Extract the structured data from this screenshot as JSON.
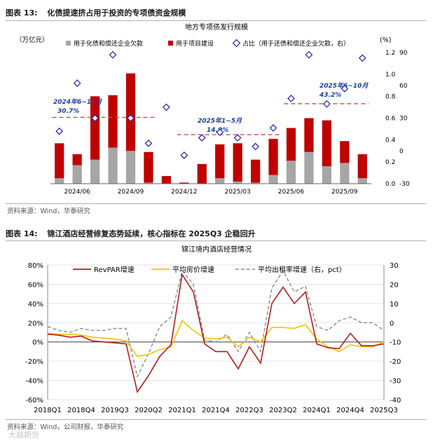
{
  "figure13": {
    "label": "图表 13:",
    "heading": "化债提速挤占用于投资的专项债资金规模",
    "source": "资料来源：Wind，华泰研究"
  },
  "figure14": {
    "label": "图表 14:",
    "heading": "锦江酒店经营修复态势延续，核心指标在 2025Q3 企稳回升",
    "source": "资料来源：Wind，公司财报，华泰研究",
    "watermark": "大越期货"
  },
  "colors": {
    "gray_bar": "#a6a6a6",
    "red_bar": "#c00000",
    "diamond": "#1f1fa8",
    "dash_red": "#c0504d",
    "line_red": "#b71c1c",
    "line_gold": "#f2c200",
    "line_gray": "#8c8c8c"
  },
  "chart_data": [
    {
      "type": "bar",
      "title": "地方专项债发行规模",
      "left_unit": "（万亿元）",
      "right_unit": "(%)",
      "legend": [
        "用于化债和偿还企业欠款",
        "用于项目建设",
        "占比（用于还债和偿还企业欠款，右）"
      ],
      "categories": [
        "2024/05",
        "2024/06",
        "2024/07",
        "2024/08",
        "2024/09",
        "2024/10",
        "2024/11",
        "2024/12",
        "2025/01",
        "2025/02",
        "2025/03",
        "2025/04",
        "2025/05",
        "2025/06",
        "2025/07",
        "2025/08",
        "2025/09",
        "2025/10"
      ],
      "x_tick_labels": [
        "2024/06",
        "2024/09",
        "2024/12",
        "2025/03",
        "2025/06",
        "2025/09"
      ],
      "series": [
        {
          "name": "用于化债和偿还企业欠款",
          "values": [
            0.05,
            0.17,
            0.22,
            0.33,
            0.3,
            0.01,
            0.0,
            0.0,
            0.0,
            0.05,
            0.02,
            0.01,
            0.08,
            0.21,
            0.29,
            0.16,
            0.19,
            0.05
          ]
        },
        {
          "name": "用于项目建设",
          "values": [
            0.32,
            0.1,
            0.58,
            0.48,
            0.71,
            0.28,
            0.07,
            0.01,
            0.18,
            0.31,
            0.35,
            0.21,
            0.33,
            0.3,
            0.31,
            0.42,
            0.2,
            0.22
          ]
        },
        {
          "name": "占比（用于还债和偿还企业欠款，右）",
          "values": [
            18,
            62,
            30,
            88,
            30,
            7,
            40,
            -4,
            12,
            17,
            12,
            4,
            21,
            48,
            88,
            43,
            57,
            85
          ]
        }
      ],
      "ylim_left": [
        0.0,
        1.2
      ],
      "yticks_left": [
        0.0,
        0.2,
        0.4,
        0.6,
        0.8,
        1.0,
        1.2
      ],
      "ylim_right": [
        -30,
        90
      ],
      "yticks_right": [
        -30,
        0,
        30,
        60,
        90
      ],
      "reference_lines": [
        {
          "label": "2024年6~11月",
          "value_label": "30.7%",
          "value": 30.7,
          "from": "2024/05",
          "to": "2024/10"
        },
        {
          "label": "2025年1~5月",
          "value_label": "14.9%",
          "value": 14.9,
          "from": "2024/12",
          "to": "2025/05"
        },
        {
          "label": "2025年6~10月",
          "value_label": "43.2%",
          "value": 43.2,
          "from": "2025/06",
          "to": "2025/10"
        }
      ]
    },
    {
      "type": "line",
      "title": "锦江境内酒店经营情况",
      "legend": [
        "RevPAR增速",
        "平均房价增速",
        "平均出租率增速（右，pct）"
      ],
      "x": [
        "2018Q1",
        "2018Q2",
        "2018Q3",
        "2018Q4",
        "2019Q1",
        "2019Q2",
        "2019Q3",
        "2019Q4",
        "2020Q1",
        "2020Q2",
        "2020Q3",
        "2020Q4",
        "2021Q1",
        "2021Q2",
        "2021Q3",
        "2021Q4",
        "2022Q1",
        "2022Q2",
        "2022Q3",
        "2022Q4",
        "2023Q1",
        "2023Q2",
        "2023Q3",
        "2023Q4",
        "2024Q1",
        "2024Q2",
        "2024Q3",
        "2024Q4",
        "2025Q1",
        "2025Q2",
        "2025Q3"
      ],
      "x_tick_labels": [
        "2018Q1",
        "2018Q4",
        "2019Q3",
        "2020Q2",
        "2021Q1",
        "2021Q4",
        "2022Q3",
        "2023Q2",
        "2024Q1",
        "2024Q4",
        "2025Q3"
      ],
      "series": [
        {
          "name": "RevPAR增速",
          "axis": "left",
          "values": [
            8,
            7,
            5,
            6,
            1,
            0,
            -1,
            -2,
            -52,
            -35,
            -15,
            -3,
            70,
            52,
            -2,
            -10,
            -10,
            -28,
            -5,
            -22,
            40,
            57,
            40,
            52,
            -2,
            -6,
            -7,
            9,
            -4,
            -4,
            -2
          ]
        },
        {
          "name": "平均房价增速",
          "axis": "left",
          "values": [
            9,
            8,
            8,
            7,
            5,
            4,
            3,
            1,
            -15,
            -13,
            -8,
            -5,
            22,
            12,
            4,
            3,
            5,
            -5,
            5,
            0,
            15,
            15,
            14,
            18,
            3,
            -5,
            -10,
            -3,
            -5,
            -5,
            0
          ]
        },
        {
          "name": "平均出租率增速（右，pct）",
          "axis": "right",
          "values": [
            -2,
            -4,
            -5,
            -3,
            -4,
            -4,
            -3,
            -3,
            -28,
            -16,
            -2,
            3,
            27,
            20,
            -9,
            -10,
            -6,
            -15,
            -5,
            -15,
            18,
            27,
            16,
            19,
            -2,
            -4,
            1,
            3,
            0,
            0,
            -4
          ]
        }
      ],
      "ylim_left": [
        -60,
        80
      ],
      "yticks_left": [
        "-60%",
        "-40%",
        "-20%",
        "0%",
        "20%",
        "40%",
        "60%",
        "80%"
      ],
      "ylim_right": [
        -40,
        30
      ],
      "yticks_right": [
        -40,
        -30,
        -20,
        -10,
        0,
        10,
        20,
        30
      ]
    }
  ]
}
